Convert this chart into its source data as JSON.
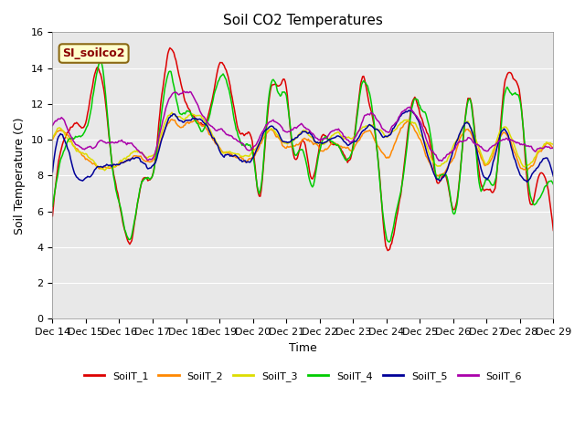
{
  "title": "Soil CO2 Temperatures",
  "xlabel": "Time",
  "ylabel": "Soil Temperature (C)",
  "ylim": [
    0,
    16
  ],
  "yticks": [
    0,
    2,
    4,
    6,
    8,
    10,
    12,
    14,
    16
  ],
  "annotation": "SI_soilco2",
  "background_color": "#e8e8e8",
  "series_colors": {
    "SoilT_1": "#dd0000",
    "SoilT_2": "#ff8800",
    "SoilT_3": "#dddd00",
    "SoilT_4": "#00cc00",
    "SoilT_5": "#000099",
    "SoilT_6": "#aa00aa"
  },
  "x_tick_labels": [
    "Dec 14",
    "Dec 15",
    "Dec 16",
    "Dec 17",
    "Dec 18",
    "Dec 19",
    "Dec 20",
    "Dec 21",
    "Dec 22",
    "Dec 23",
    "Dec 24",
    "Dec 25",
    "Dec 26",
    "Dec 27",
    "Dec 28",
    "Dec 29"
  ],
  "soilT1_keypoints_x": [
    0,
    0.2,
    0.5,
    0.8,
    1.0,
    1.3,
    1.5,
    1.8,
    2.0,
    2.3,
    2.7,
    3.0,
    3.2,
    3.5,
    3.8,
    4.0,
    4.3,
    4.6,
    5.0,
    5.3,
    5.6,
    5.8,
    6.0,
    6.2,
    6.5,
    6.8,
    7.0,
    7.2,
    7.5,
    7.8,
    8.0,
    8.3,
    8.6,
    9.0,
    9.3,
    9.5,
    9.7,
    10.0,
    10.3,
    10.5,
    10.8,
    11.0,
    11.3,
    11.5,
    11.8,
    12.0,
    12.2,
    12.5,
    12.8,
    13.0,
    13.3,
    13.5,
    13.8,
    14.0,
    14.3,
    14.5,
    14.8,
    15.0
  ],
  "soilT1_keypoints_y": [
    5.7,
    9.0,
    10.5,
    10.8,
    11.0,
    13.9,
    13.2,
    8.5,
    6.5,
    4.2,
    7.8,
    8.0,
    11.0,
    15.0,
    13.5,
    12.0,
    11.2,
    11.0,
    14.0,
    13.2,
    10.5,
    10.5,
    9.5,
    7.0,
    12.5,
    13.0,
    13.0,
    9.2,
    10.0,
    7.7,
    9.6,
    10.0,
    9.5,
    9.7,
    13.5,
    12.0,
    9.8,
    4.1,
    5.6,
    8.0,
    12.2,
    11.5,
    9.8,
    7.8,
    7.8,
    6.0,
    8.0,
    12.5,
    7.8,
    7.5,
    8.0,
    12.5,
    13.5,
    12.5,
    6.5,
    7.5,
    7.5,
    5.0
  ],
  "soilT2_keypoints_x": [
    0,
    0.3,
    0.7,
    1.0,
    1.4,
    1.8,
    2.2,
    2.7,
    3.0,
    3.5,
    3.8,
    4.2,
    4.6,
    5.0,
    5.5,
    6.0,
    6.5,
    7.0,
    7.5,
    8.0,
    8.5,
    9.0,
    9.5,
    10.0,
    10.5,
    11.0,
    11.5,
    12.0,
    12.5,
    13.0,
    13.5,
    14.0,
    14.5,
    15.0
  ],
  "soilT2_keypoints_y": [
    10.0,
    10.5,
    9.5,
    9.0,
    8.5,
    8.5,
    8.8,
    9.0,
    8.8,
    11.0,
    10.8,
    11.0,
    10.5,
    9.5,
    9.0,
    9.0,
    10.5,
    9.5,
    10.0,
    9.5,
    9.8,
    9.5,
    10.5,
    9.0,
    10.8,
    10.0,
    8.0,
    9.0,
    10.5,
    8.5,
    10.5,
    8.5,
    9.0,
    9.5
  ],
  "soilT3_keypoints_x": [
    0,
    0.3,
    0.7,
    1.0,
    1.4,
    1.8,
    2.2,
    2.7,
    3.0,
    3.5,
    3.8,
    4.2,
    4.6,
    5.0,
    5.5,
    6.0,
    6.5,
    7.0,
    7.5,
    8.0,
    8.5,
    9.0,
    9.5,
    10.0,
    10.5,
    11.0,
    11.5,
    12.0,
    12.5,
    13.0,
    13.5,
    14.0,
    14.5,
    15.0
  ],
  "soilT3_keypoints_y": [
    10.2,
    10.5,
    9.5,
    9.2,
    8.5,
    8.5,
    9.0,
    9.2,
    9.0,
    11.5,
    11.2,
    11.5,
    11.0,
    9.5,
    9.2,
    9.3,
    10.5,
    9.8,
    10.3,
    9.8,
    10.3,
    10.2,
    10.8,
    10.2,
    11.0,
    10.5,
    8.5,
    9.5,
    10.8,
    8.8,
    10.8,
    8.8,
    9.2,
    9.8
  ],
  "soilT4_keypoints_x": [
    0,
    0.2,
    0.5,
    0.8,
    1.0,
    1.3,
    1.5,
    1.8,
    2.0,
    2.3,
    2.7,
    3.0,
    3.2,
    3.5,
    3.8,
    4.0,
    4.3,
    4.6,
    5.0,
    5.3,
    5.6,
    5.8,
    6.0,
    6.2,
    6.5,
    6.8,
    7.0,
    7.2,
    7.5,
    7.8,
    8.0,
    8.3,
    8.6,
    9.0,
    9.3,
    9.5,
    9.7,
    10.0,
    10.3,
    10.5,
    10.8,
    11.0,
    11.3,
    11.5,
    11.8,
    12.0,
    12.2,
    12.5,
    12.8,
    13.0,
    13.3,
    13.5,
    13.8,
    14.0,
    14.3,
    14.5,
    14.8,
    15.0
  ],
  "soilT4_keypoints_y": [
    6.2,
    8.5,
    10.0,
    10.2,
    10.5,
    13.5,
    13.8,
    8.3,
    6.5,
    4.5,
    7.8,
    8.0,
    10.5,
    13.8,
    11.5,
    11.5,
    11.0,
    10.8,
    13.5,
    12.5,
    10.0,
    9.8,
    9.2,
    7.0,
    12.8,
    12.5,
    12.5,
    9.5,
    9.5,
    7.5,
    9.5,
    10.0,
    9.5,
    9.5,
    13.2,
    12.5,
    9.8,
    4.5,
    5.8,
    7.8,
    12.0,
    11.8,
    10.5,
    8.0,
    8.0,
    5.8,
    7.8,
    12.3,
    7.5,
    7.8,
    8.0,
    12.0,
    12.5,
    12.0,
    7.0,
    6.5,
    7.5,
    7.5
  ],
  "soilT5_keypoints_x": [
    0,
    0.3,
    0.7,
    1.0,
    1.4,
    1.8,
    2.2,
    2.7,
    3.0,
    3.5,
    3.8,
    4.2,
    4.6,
    5.0,
    5.5,
    6.0,
    6.5,
    7.0,
    7.5,
    8.0,
    8.5,
    9.0,
    9.5,
    10.0,
    10.5,
    11.0,
    11.5,
    12.0,
    12.5,
    13.0,
    13.5,
    14.0,
    14.5,
    15.0
  ],
  "soilT5_keypoints_y": [
    8.3,
    10.2,
    8.0,
    7.8,
    8.5,
    8.5,
    8.8,
    8.8,
    8.5,
    11.2,
    11.0,
    11.2,
    10.8,
    9.5,
    9.0,
    9.0,
    10.8,
    9.8,
    10.5,
    9.8,
    10.2,
    9.8,
    10.8,
    10.2,
    11.5,
    10.8,
    7.8,
    9.2,
    10.8,
    7.8,
    10.5,
    8.0,
    8.5,
    8.0
  ],
  "soilT6_keypoints_x": [
    0,
    0.3,
    0.7,
    1.0,
    1.4,
    1.8,
    2.2,
    2.7,
    3.0,
    3.5,
    3.8,
    4.2,
    4.6,
    5.0,
    5.5,
    6.0,
    6.5,
    7.0,
    7.5,
    8.0,
    8.5,
    9.0,
    9.5,
    10.0,
    10.5,
    11.0,
    11.5,
    12.0,
    12.5,
    13.0,
    13.5,
    14.0,
    14.5,
    15.0
  ],
  "soilT6_keypoints_y": [
    10.8,
    11.0,
    9.8,
    9.5,
    9.8,
    9.8,
    9.8,
    9.2,
    9.0,
    12.3,
    12.5,
    12.5,
    11.0,
    10.5,
    10.0,
    9.5,
    11.0,
    10.5,
    10.8,
    10.0,
    10.5,
    10.0,
    11.5,
    10.5,
    11.5,
    11.0,
    9.0,
    9.5,
    10.0,
    9.5,
    10.0,
    9.8,
    9.5,
    9.5
  ]
}
